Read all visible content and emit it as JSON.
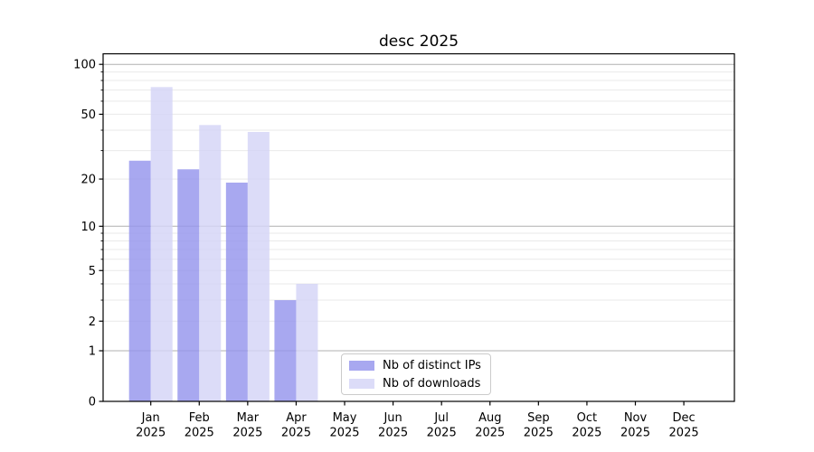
{
  "chart_data": {
    "type": "bar",
    "title": "desc 2025",
    "categories": [
      "Jan",
      "Feb",
      "Mar",
      "Apr",
      "May",
      "Jun",
      "Jul",
      "Aug",
      "Sep",
      "Oct",
      "Nov",
      "Dec"
    ],
    "x_sublabel": "2025",
    "series": [
      {
        "name": "Nb of distinct IPs",
        "color": "#9595ed",
        "values": [
          26,
          23,
          19,
          3,
          0,
          0,
          0,
          0,
          0,
          0,
          0,
          0
        ]
      },
      {
        "name": "Nb of downloads",
        "color": "#d4d4f6",
        "values": [
          73,
          43,
          39,
          4,
          0,
          0,
          0,
          0,
          0,
          0,
          0,
          0
        ]
      }
    ],
    "y_ticks": [
      0,
      1,
      2,
      5,
      10,
      20,
      50,
      100
    ],
    "y_minor_ticks": [
      3,
      4,
      6,
      7,
      8,
      9,
      30,
      40,
      60,
      70,
      80,
      90
    ],
    "y_major_gridlines": [
      1,
      10,
      100
    ],
    "y_scale": "log1p",
    "ylim": [
      0,
      116
    ],
    "xlabel": "",
    "ylabel": "",
    "grid": "both",
    "legend_position": "lower-center",
    "bar_opacity": 0.82,
    "colors": {
      "grid_major": "#b0b0b0",
      "grid_minor": "#e9e9e9",
      "spine": "#000000",
      "text": "#000000",
      "legend_border": "#cbcbcb",
      "background": "#ffffff"
    }
  }
}
